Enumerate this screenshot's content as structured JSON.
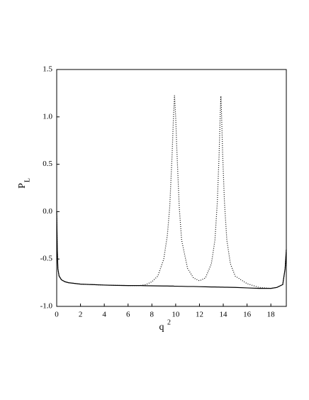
{
  "chart_data": {
    "type": "line",
    "x_label": "q",
    "x_label_sup": "2",
    "y_label": "P",
    "y_label_sub": "L",
    "x": [
      0,
      0.05,
      0.1,
      0.2,
      0.4,
      0.7,
      1,
      2,
      3,
      4,
      5,
      6,
      7,
      7.5,
      8,
      8.5,
      9,
      9.3,
      9.5,
      9.7,
      9.8,
      9.9,
      10.0,
      10.1,
      10.3,
      10.5,
      11,
      11.5,
      12,
      12.5,
      13,
      13.3,
      13.5,
      13.65,
      13.75,
      13.8,
      13.85,
      13.95,
      14.1,
      14.3,
      14.6,
      15,
      16,
      17,
      18,
      18.5,
      19,
      19.2,
      19.3
    ],
    "series": [
      {
        "color": "#000000",
        "dash": "solid",
        "values": [
          0.0,
          -0.4,
          -0.6,
          -0.68,
          -0.72,
          -0.74,
          -0.75,
          -0.765,
          -0.77,
          -0.775,
          -0.778,
          -0.78,
          -0.78,
          -0.782,
          -0.783,
          -0.784,
          -0.785,
          -0.785,
          -0.786,
          -0.786,
          -0.786,
          -0.787,
          -0.787,
          -0.787,
          -0.788,
          -0.788,
          -0.79,
          -0.79,
          -0.792,
          -0.793,
          -0.795,
          -0.795,
          -0.796,
          -0.796,
          -0.797,
          -0.797,
          -0.797,
          -0.797,
          -0.798,
          -0.798,
          -0.799,
          -0.8,
          -0.805,
          -0.81,
          -0.81,
          -0.8,
          -0.77,
          -0.6,
          -0.4
        ]
      },
      {
        "color": "#000000",
        "dash": "dotted",
        "values": [
          0.0,
          -0.4,
          -0.6,
          -0.68,
          -0.72,
          -0.74,
          -0.75,
          -0.765,
          -0.77,
          -0.775,
          -0.778,
          -0.78,
          -0.78,
          -0.77,
          -0.74,
          -0.68,
          -0.5,
          -0.25,
          0.05,
          0.6,
          0.95,
          1.23,
          1.0,
          0.65,
          0.05,
          -0.3,
          -0.6,
          -0.7,
          -0.73,
          -0.7,
          -0.55,
          -0.3,
          0.1,
          0.6,
          1.05,
          1.22,
          1.05,
          0.6,
          0.1,
          -0.3,
          -0.55,
          -0.68,
          -0.76,
          -0.8,
          -0.81,
          -0.8,
          -0.77,
          -0.6,
          -0.4
        ]
      }
    ],
    "xlim": [
      0,
      19.3
    ],
    "ylim": [
      -1.0,
      1.5
    ],
    "xticks": [
      0,
      2,
      4,
      6,
      8,
      10,
      12,
      14,
      16,
      18
    ],
    "yticks": [
      {
        "value": -1.0,
        "label": "-1.0"
      },
      {
        "value": -0.5,
        "label": "-0.5"
      },
      {
        "value": 0.0,
        "label": "0.0"
      },
      {
        "value": 0.5,
        "label": "0.5"
      },
      {
        "value": 1.0,
        "label": "1.0"
      },
      {
        "value": 1.5,
        "label": "1.5"
      }
    ],
    "grid": false
  }
}
